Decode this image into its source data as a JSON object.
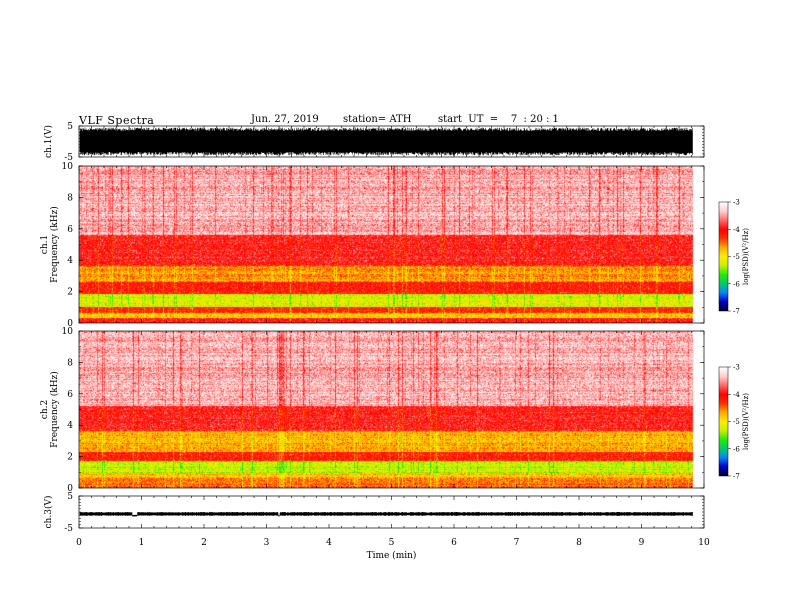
{
  "header": {
    "title": "VLF Spectra",
    "date": "Jun. 27, 2019",
    "station": "station= ATH",
    "start": "start  UT  =    7  : 20 : 1"
  },
  "chart_data": [
    {
      "type": "line",
      "name": "ch1-waveform",
      "ylabel": "ch.1(V)",
      "ylim": [
        -5,
        5
      ],
      "y_ticks": [
        "5",
        "-5"
      ],
      "x_end_min": 9.82,
      "amplitude_range": [
        -4.5,
        4.5
      ]
    },
    {
      "type": "heatmap",
      "name": "ch1-spectrogram",
      "ylabel": "ch.1\nFrequency  (kHz)",
      "ylim": [
        0,
        10
      ],
      "y_ticks": [
        "0",
        "2",
        "4",
        "6",
        "8",
        "10"
      ],
      "x_end_min": 9.82,
      "psd_profile": [
        {
          "f_khz": [
            0,
            0.3
          ],
          "log_psd": -4.0
        },
        {
          "f_khz": [
            0.3,
            0.6
          ],
          "log_psd": -4.8
        },
        {
          "f_khz": [
            0.6,
            1.0
          ],
          "log_psd": -4.2
        },
        {
          "f_khz": [
            1.0,
            1.8
          ],
          "log_psd": -5.2
        },
        {
          "f_khz": [
            1.8,
            2.6
          ],
          "log_psd": -4.0
        },
        {
          "f_khz": [
            2.6,
            3.6
          ],
          "log_psd": -4.6
        },
        {
          "f_khz": [
            3.6,
            5.6
          ],
          "log_psd": -3.9
        },
        {
          "f_khz": [
            5.6,
            10.0
          ],
          "log_psd": -3.4
        }
      ],
      "colorbar": {
        "label": "log(PSD)(V²/Hz)",
        "range": [
          -7,
          -3
        ],
        "ticks": [
          "-3",
          "-4",
          "-5",
          "-6",
          "-7"
        ]
      }
    },
    {
      "type": "heatmap",
      "name": "ch2-spectrogram",
      "ylabel": "ch.2\nFrequency  (kHz)",
      "ylim": [
        0,
        10
      ],
      "y_ticks": [
        "0",
        "2",
        "4",
        "6",
        "8",
        "10"
      ],
      "x_end_min": 9.82,
      "psd_profile": [
        {
          "f_khz": [
            0,
            0.6
          ],
          "log_psd": -4.5
        },
        {
          "f_khz": [
            0.6,
            0.9
          ],
          "log_psd": -4.8
        },
        {
          "f_khz": [
            0.9,
            1.7
          ],
          "log_psd": -5.3
        },
        {
          "f_khz": [
            1.7,
            2.3
          ],
          "log_psd": -4.1
        },
        {
          "f_khz": [
            2.3,
            3.6
          ],
          "log_psd": -4.7
        },
        {
          "f_khz": [
            3.6,
            5.2
          ],
          "log_psd": -3.95
        },
        {
          "f_khz": [
            5.2,
            10.0
          ],
          "log_psd": -3.4
        }
      ],
      "colorbar": {
        "label": "log(PSD)(V²/Hz)",
        "range": [
          -7,
          -3
        ],
        "ticks": [
          "-3",
          "-4",
          "-5",
          "-6",
          "-7"
        ]
      }
    },
    {
      "type": "line",
      "name": "ch3-waveform",
      "ylabel": "ch.3(V)",
      "ylim": [
        -5,
        5
      ],
      "y_ticks": [
        "5",
        "-5"
      ],
      "x_end_min": 9.82,
      "baseline_v": -0.6,
      "gaps_min": [
        [
          0.85,
          0.93
        ],
        [
          3.19,
          3.21
        ]
      ]
    }
  ],
  "x_axis": {
    "label": "Time  (min)",
    "range": [
      0,
      10
    ],
    "ticks": [
      "0",
      "1",
      "2",
      "3",
      "4",
      "5",
      "6",
      "7",
      "8",
      "9",
      "10"
    ]
  },
  "colorscale": [
    "#000033",
    "#0000cc",
    "#0088ff",
    "#00cc66",
    "#22ee00",
    "#ccee00",
    "#ffee00",
    "#ffaa00",
    "#ff3300",
    "#ff0000",
    "#ff6666",
    "#ffcccc",
    "#ffffff"
  ]
}
